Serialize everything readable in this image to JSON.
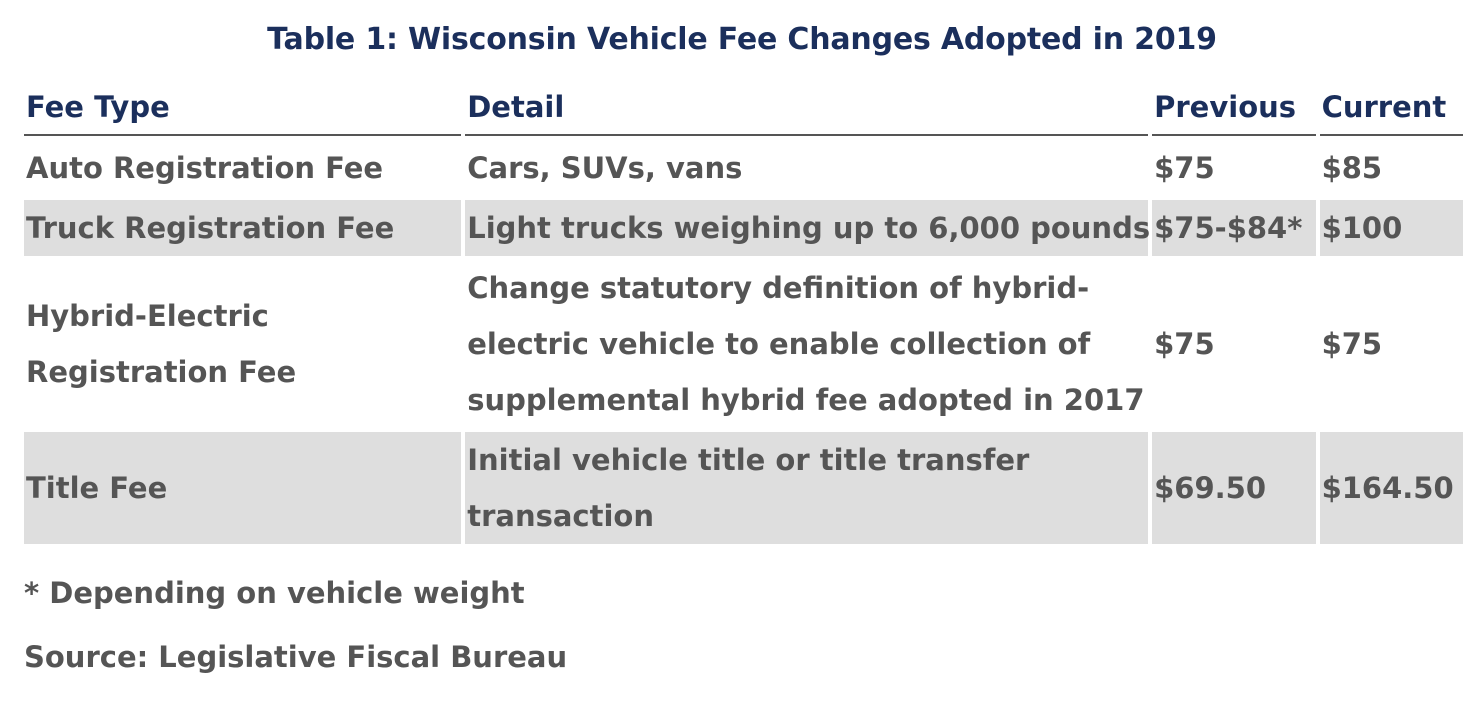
{
  "title": "Table 1: Wisconsin Vehicle Fee Changes Adopted in 2019",
  "headers": {
    "fee_type": "Fee Type",
    "detail": "Detail",
    "previous": "Previous",
    "current": "Current"
  },
  "rows": [
    {
      "fee_type": "Auto Registration Fee",
      "detail": "Cars, SUVs, vans",
      "previous": "$75",
      "current": "$85"
    },
    {
      "fee_type": "Truck Registration Fee",
      "detail": "Light trucks weighing up to 6,000 pounds",
      "previous": "$75-$84*",
      "current": "$100"
    },
    {
      "fee_type": "Hybrid-Electric Registration Fee",
      "detail": "Change statutory definition of hybrid-electric vehicle to enable collection of supplemental hybrid fee adopted in 2017",
      "previous": "$75",
      "current": "$75"
    },
    {
      "fee_type": "Title Fee",
      "detail": "Initial vehicle title or title transfer transaction",
      "previous": "$69.50",
      "current": "$164.50"
    }
  ],
  "footnote": "* Depending on vehicle weight",
  "source": "Source: Legislative Fiscal Bureau"
}
